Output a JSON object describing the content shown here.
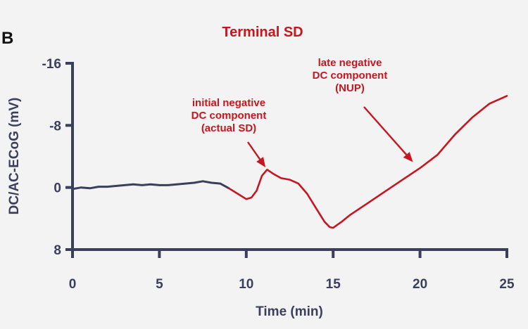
{
  "panel_letter": "B",
  "chart_data": {
    "type": "line",
    "title": "Terminal SD",
    "xlabel": "Time (min)",
    "ylabel": "DC/AC-ECoG (mV)",
    "xlim": [
      0,
      25
    ],
    "ylim": [
      8,
      -16
    ],
    "y_axis_inverted": true,
    "x_ticks": [
      0,
      5,
      10,
      15,
      20,
      25
    ],
    "y_ticks": [
      -16,
      -8,
      0,
      8
    ],
    "x_tick_labels": [
      "0",
      "5",
      "10",
      "15",
      "20",
      "25"
    ],
    "y_tick_labels": [
      "-16",
      "-8",
      "0",
      "8"
    ],
    "grid": false,
    "series": [
      {
        "color": "#3a3f5c",
        "x": [
          0,
          0.5,
          1,
          1.5,
          2,
          2.5,
          3,
          3.5,
          4,
          4.5,
          5,
          5.5,
          6,
          6.5,
          7,
          7.5,
          8,
          8.5,
          9
        ],
        "y": [
          0.2,
          0.0,
          0.1,
          -0.1,
          -0.1,
          -0.2,
          -0.3,
          -0.4,
          -0.3,
          -0.4,
          -0.3,
          -0.3,
          -0.4,
          -0.5,
          -0.6,
          -0.8,
          -0.6,
          -0.5,
          0.1
        ]
      },
      {
        "color": "#c6161f",
        "x": [
          9,
          9.5,
          10,
          10.3,
          10.6,
          10.9,
          11.2,
          11.6,
          12,
          12.5,
          13,
          13.5,
          14,
          14.5,
          14.8,
          15,
          15.5,
          16,
          17,
          18,
          19,
          20,
          21,
          22,
          23,
          24,
          25
        ],
        "y": [
          0.1,
          0.8,
          1.5,
          1.3,
          0.4,
          -1.5,
          -2.3,
          -1.7,
          -1.2,
          -1.0,
          -0.5,
          0.8,
          2.6,
          4.4,
          5.1,
          5.2,
          4.4,
          3.5,
          2.0,
          0.5,
          -1.0,
          -2.5,
          -4.2,
          -6.8,
          -9.0,
          -10.8,
          -11.8
        ]
      }
    ],
    "annotations": [
      {
        "lines": [
          "initial negative",
          "DC component",
          "(actual SD)"
        ],
        "color": "#c6161f",
        "arrow_to": {
          "x": 11.2,
          "y": -2.3
        }
      },
      {
        "lines": [
          "late negative",
          "DC component",
          "(NUP)"
        ],
        "color": "#c6161f",
        "arrow_to": {
          "x": 19.7,
          "y": -3.0
        }
      }
    ]
  }
}
